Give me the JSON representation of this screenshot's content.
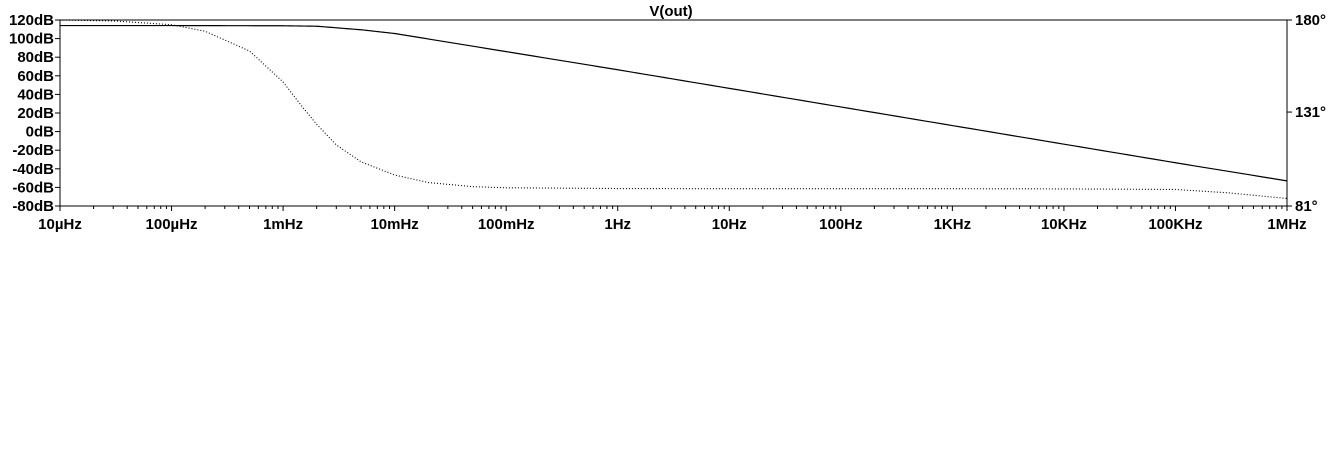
{
  "chart_data": {
    "type": "line",
    "title": "V(out)",
    "x_scale": "log",
    "x_ticks": [
      {
        "value": 1e-05,
        "label": "10µHz"
      },
      {
        "value": 0.0001,
        "label": "100µHz"
      },
      {
        "value": 0.001,
        "label": "1mHz"
      },
      {
        "value": 0.01,
        "label": "10mHz"
      },
      {
        "value": 0.1,
        "label": "100mHz"
      },
      {
        "value": 1,
        "label": "1Hz"
      },
      {
        "value": 10,
        "label": "10Hz"
      },
      {
        "value": 100,
        "label": "100Hz"
      },
      {
        "value": 1000,
        "label": "1KHz"
      },
      {
        "value": 10000,
        "label": "10KHz"
      },
      {
        "value": 100000,
        "label": "100KHz"
      },
      {
        "value": 1000000,
        "label": "1MHz"
      }
    ],
    "xlim": [
      1e-05,
      1000000
    ],
    "y_left": {
      "ylim": [
        -80,
        120
      ],
      "ticks": [
        {
          "value": 120,
          "label": "120dB"
        },
        {
          "value": 100,
          "label": "100dB"
        },
        {
          "value": 80,
          "label": "80dB"
        },
        {
          "value": 60,
          "label": "60dB"
        },
        {
          "value": 40,
          "label": "40dB"
        },
        {
          "value": 20,
          "label": "20dB"
        },
        {
          "value": 0,
          "label": "0dB"
        },
        {
          "value": -20,
          "label": "-20dB"
        },
        {
          "value": -40,
          "label": "-40dB"
        },
        {
          "value": -60,
          "label": "-60dB"
        },
        {
          "value": -80,
          "label": "-80dB"
        }
      ]
    },
    "y_right": {
      "ylim": [
        81,
        180
      ],
      "ticks": [
        {
          "value": 180,
          "label": "180°"
        },
        {
          "value": 131,
          "label": "131°"
        },
        {
          "value": 81,
          "label": "81°"
        }
      ]
    },
    "grid": false,
    "series": [
      {
        "style": "solid",
        "axis": "left",
        "x": [
          1e-05,
          0.0001,
          0.001,
          0.002,
          0.005,
          0.01,
          0.1,
          1,
          10,
          100,
          1000,
          10000,
          100000,
          1000000
        ],
        "y": [
          114,
          114,
          113.8,
          113.3,
          109.5,
          105.5,
          86,
          66.5,
          46.5,
          26.5,
          6.5,
          -13.5,
          -33.5,
          -53
        ]
      },
      {
        "style": "dotted",
        "axis": "right",
        "x": [
          1e-05,
          3e-05,
          0.0001,
          0.0002,
          0.0005,
          0.001,
          0.0015,
          0.002,
          0.003,
          0.005,
          0.01,
          0.02,
          0.05,
          0.1,
          1,
          10,
          100,
          1000,
          10000,
          100000,
          300000,
          1000000
        ],
        "y": [
          180,
          179.5,
          177.5,
          174,
          163.5,
          147,
          133.5,
          124.5,
          113.5,
          104.5,
          97.5,
          93.5,
          91.3,
          90.7,
          90.3,
          90.2,
          90.2,
          90.2,
          90.1,
          89.8,
          88,
          85
        ]
      }
    ]
  }
}
